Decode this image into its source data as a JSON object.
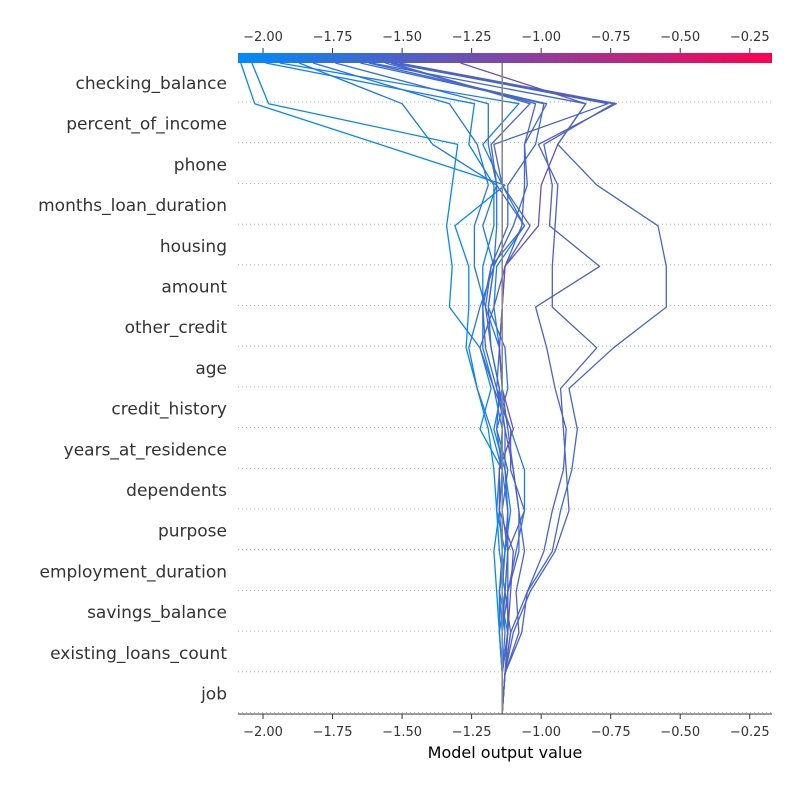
{
  "chart_data": {
    "type": "line",
    "xlabel": "Model output value",
    "xlim": [
      -2.09,
      -0.17
    ],
    "xticks": [
      -2.0,
      -1.75,
      -1.5,
      -1.25,
      -1.0,
      -0.75,
      -0.5,
      -0.25
    ],
    "xtick_labels": [
      "−2.00",
      "−1.75",
      "−1.50",
      "−1.25",
      "−1.00",
      "−0.75",
      "−0.50",
      "−0.25"
    ],
    "base_value": -1.14,
    "colorbar": {
      "range": [
        -2.09,
        -0.17
      ],
      "colors": [
        "#008bfb",
        "#ff0051"
      ]
    },
    "features": [
      "checking_balance",
      "percent_of_income",
      "phone",
      "months_loan_duration",
      "housing",
      "amount",
      "other_credit",
      "age",
      "credit_history",
      "years_at_residence",
      "dependents",
      "purpose",
      "employment_duration",
      "savings_balance",
      "existing_loans_count",
      "job"
    ],
    "series": [
      {
        "values": [
          -1.14,
          -1.14,
          -1.15,
          -1.13,
          -1.15,
          -1.16,
          -1.17,
          -1.19,
          -1.23,
          -1.27,
          -1.26,
          -1.26,
          -1.31,
          -1.13,
          -1.58,
          -2.03,
          -2.08
        ]
      },
      {
        "values": [
          -1.14,
          -1.14,
          -1.15,
          -1.16,
          -1.17,
          -1.15,
          -1.14,
          -1.22,
          -1.18,
          -1.22,
          -1.33,
          -1.32,
          -1.34,
          -1.32,
          -1.3,
          -1.98,
          -2.04
        ]
      },
      {
        "values": [
          -1.14,
          -1.14,
          -1.15,
          -1.15,
          -1.13,
          -1.16,
          -1.15,
          -1.14,
          -1.17,
          -1.21,
          -1.21,
          -1.21,
          -1.17,
          -1.17,
          -1.26,
          -1.24,
          -1.99
        ]
      },
      {
        "values": [
          -1.14,
          -1.14,
          -1.12,
          -1.15,
          -1.13,
          -1.11,
          -1.13,
          -1.17,
          -1.14,
          -1.15,
          -1.17,
          -1.16,
          -1.06,
          -1.14,
          -1.21,
          -1.08,
          -1.94
        ]
      },
      {
        "values": [
          -1.14,
          -1.14,
          -1.13,
          -1.14,
          -1.13,
          -1.12,
          -1.14,
          -1.18,
          -1.23,
          -1.26,
          -1.22,
          -1.17,
          -1.21,
          -1.16,
          -1.39,
          -1.5,
          -1.87
        ]
      },
      {
        "values": [
          -1.14,
          -1.14,
          -1.12,
          -1.12,
          -1.09,
          -1.06,
          -1.06,
          -1.11,
          -1.16,
          -1.15,
          -1.2,
          -1.24,
          -1.24,
          -1.19,
          -1.23,
          -1.33,
          -1.82
        ]
      },
      {
        "values": [
          -1.14,
          -1.14,
          -1.14,
          -1.15,
          -1.14,
          -1.15,
          -1.14,
          -1.16,
          -1.12,
          -1.13,
          -1.19,
          -1.17,
          -1.16,
          -1.16,
          -1.19,
          -1.19,
          -1.74
        ]
      },
      {
        "values": [
          -1.14,
          -1.14,
          -1.14,
          -1.12,
          -1.12,
          -1.14,
          -1.12,
          -1.16,
          -1.15,
          -1.18,
          -1.2,
          -1.18,
          -1.12,
          -1.12,
          -1.02,
          -0.99,
          -1.65
        ]
      },
      {
        "values": [
          -1.14,
          -1.14,
          -1.14,
          -1.13,
          -1.12,
          -1.12,
          -1.13,
          -1.13,
          -1.15,
          -1.18,
          -1.19,
          -1.17,
          -1.1,
          -1.05,
          -1.06,
          -0.98,
          -1.62
        ]
      },
      {
        "values": [
          -1.14,
          -1.14,
          -1.12,
          -1.12,
          -1.08,
          -1.08,
          -1.1,
          -1.12,
          -1.14,
          -1.15,
          -1.14,
          -1.13,
          -1.07,
          -1.06,
          -1.06,
          -1.02,
          -1.56
        ]
      },
      {
        "values": [
          -1.14,
          -1.13,
          -1.08,
          -1.09,
          -1.06,
          -1.08,
          -1.1,
          -1.13,
          -1.16,
          -1.2,
          -1.21,
          -1.18,
          -1.06,
          -1.16,
          -1.18,
          -1.04,
          -1.54
        ]
      },
      {
        "values": [
          -1.14,
          -1.13,
          -1.11,
          -1.13,
          -1.12,
          -1.06,
          -1.11,
          -1.11,
          -1.17,
          -1.22,
          -1.17,
          -1.13,
          -1.04,
          -1.14,
          -1.17,
          -0.76,
          -1.54
        ]
      },
      {
        "values": [
          -1.14,
          -1.13,
          -1.12,
          -1.11,
          -1.1,
          -1.15,
          -1.15,
          -1.1,
          -1.14,
          -1.15,
          -1.14,
          -1.13,
          -1.01,
          -1.0,
          -0.94,
          -0.84,
          -1.29
        ]
      },
      {
        "values": [
          -1.14,
          -1.13,
          -1.07,
          -1.05,
          -0.99,
          -0.96,
          -0.92,
          -0.91,
          -0.95,
          -0.98,
          -1.02,
          -0.79,
          -0.97,
          -0.96,
          -0.99,
          -0.74,
          -1.53
        ]
      },
      {
        "values": [
          -1.14,
          -1.13,
          -1.1,
          -1.04,
          -0.95,
          -0.9,
          -0.91,
          -0.92,
          -0.93,
          -0.8,
          -0.96,
          -0.96,
          -0.95,
          -0.94,
          -1.01,
          -0.73,
          -1.51
        ]
      },
      {
        "values": [
          -1.14,
          -1.13,
          -1.11,
          -1.05,
          -0.96,
          -0.93,
          -0.89,
          -0.87,
          -0.9,
          -0.74,
          -0.55,
          -0.55,
          -0.58,
          -0.8,
          -0.94,
          -0.84,
          -1.61
        ]
      }
    ]
  }
}
